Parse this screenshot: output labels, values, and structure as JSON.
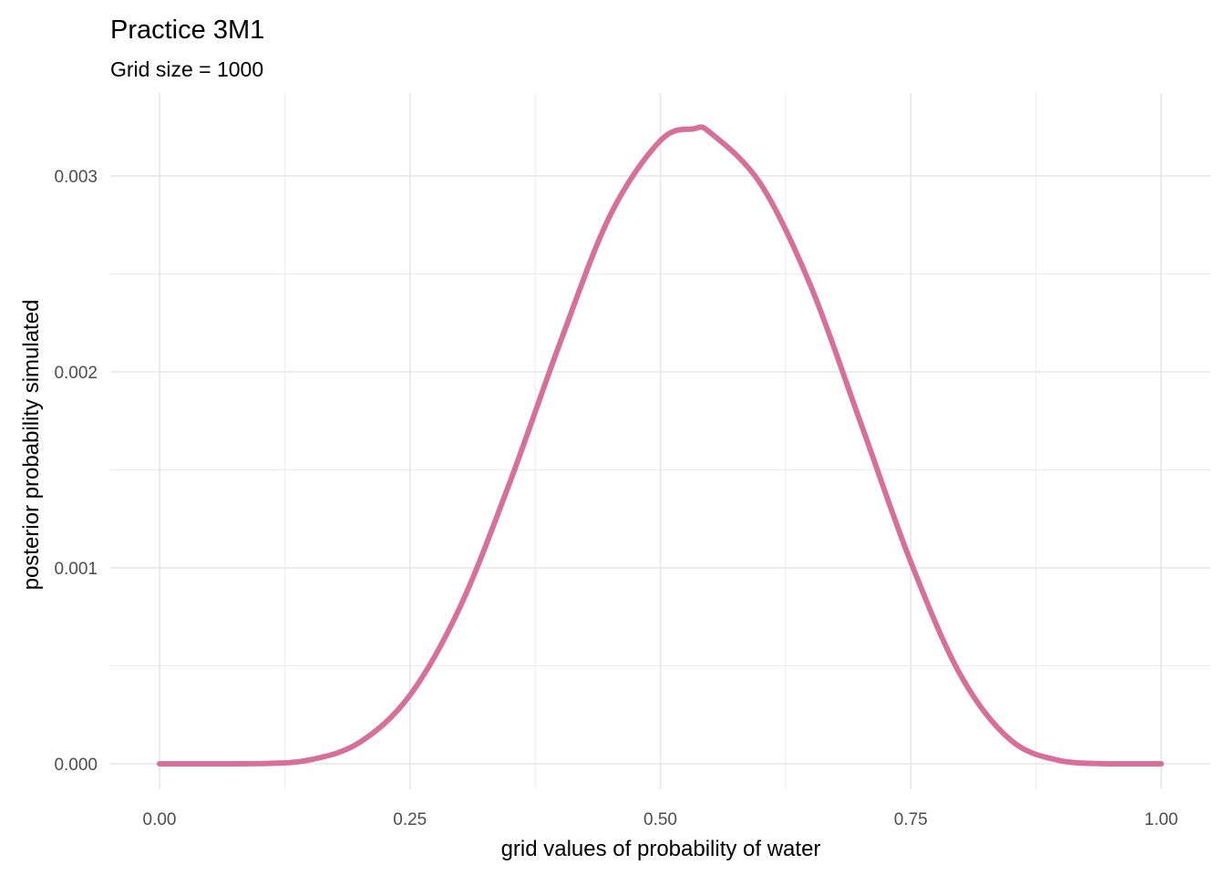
{
  "chart_data": {
    "type": "line",
    "title": "Practice 3M1",
    "subtitle": "Grid size = 1000",
    "xlabel": "grid values of probability of water",
    "ylabel": "posterior probability simulated",
    "xlim": [
      0,
      1
    ],
    "ylim": [
      0,
      0.00325
    ],
    "x_ticks": [
      0.0,
      0.25,
      0.5,
      0.75,
      1.0
    ],
    "x_tick_labels": [
      "0.00",
      "0.25",
      "0.50",
      "0.75",
      "1.00"
    ],
    "x_minor_ticks": [
      0.125,
      0.375,
      0.625,
      0.875
    ],
    "y_ticks": [
      0.0,
      0.001,
      0.002,
      0.003
    ],
    "y_tick_labels": [
      "0.000",
      "0.001",
      "0.002",
      "0.003"
    ],
    "y_minor_ticks": [
      0.0005,
      0.0015,
      0.0025
    ],
    "grid": true,
    "line_color": "#d6709b",
    "series": [
      {
        "x": [
          0.0,
          0.05,
          0.1,
          0.15,
          0.2,
          0.25,
          0.3,
          0.35,
          0.4,
          0.45,
          0.5,
          0.533,
          0.55,
          0.6,
          0.65,
          0.7,
          0.75,
          0.8,
          0.85,
          0.9,
          0.95,
          1.0
        ],
        "values": [
          0.0,
          0.0,
          9e-07,
          2e-05,
          0.00011,
          0.00035,
          0.0008,
          0.00144,
          0.00215,
          0.0028,
          0.00318,
          0.00324,
          0.00322,
          0.00296,
          0.00244,
          0.00174,
          0.00103,
          0.00045,
          0.00012,
          1.5e-05,
          2e-07,
          0.0
        ]
      }
    ]
  }
}
